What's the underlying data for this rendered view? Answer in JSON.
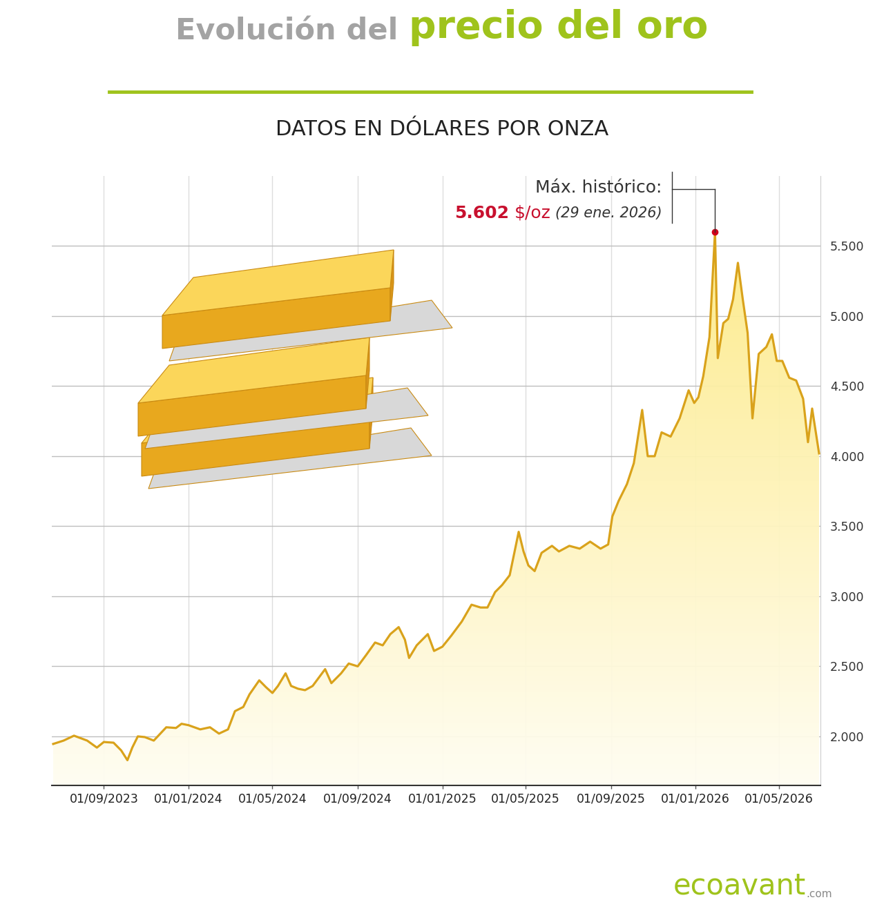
{
  "chart_data": {
    "type": "line",
    "title": [
      "Evolución del",
      "precio del oro"
    ],
    "subtitle": "DATOS EN DÓLARES POR ONZA",
    "color": "#d9a21b",
    "grid": true,
    "x": [
      "2023-06-20",
      "2023-07-05",
      "2023-07-20",
      "2023-08-08",
      "2023-08-22",
      "2023-09-01",
      "2023-09-15",
      "2023-09-26",
      "2023-10-05",
      "2023-10-12",
      "2023-10-20",
      "2023-10-30",
      "2023-11-12",
      "2023-11-30",
      "2023-12-14",
      "2023-12-22",
      "2024-01-01",
      "2024-01-18",
      "2024-02-01",
      "2024-02-14",
      "2024-02-27",
      "2024-03-08",
      "2024-03-20",
      "2024-03-29",
      "2024-04-12",
      "2024-04-22",
      "2024-05-01",
      "2024-05-09",
      "2024-05-20",
      "2024-05-28",
      "2024-06-07",
      "2024-06-17",
      "2024-06-28",
      "2024-07-16",
      "2024-07-25",
      "2024-08-08",
      "2024-08-19",
      "2024-09-01",
      "2024-09-13",
      "2024-09-26",
      "2024-10-07",
      "2024-10-18",
      "2024-10-30",
      "2024-11-08",
      "2024-11-14",
      "2024-11-25",
      "2024-12-11",
      "2024-12-20",
      "2025-01-01",
      "2025-01-14",
      "2025-01-29",
      "2025-02-12",
      "2025-02-25",
      "2025-03-07",
      "2025-03-18",
      "2025-03-28",
      "2025-04-08",
      "2025-04-21",
      "2025-04-28",
      "2025-05-05",
      "2025-05-14",
      "2025-05-24",
      "2025-06-08",
      "2025-06-18",
      "2025-07-03",
      "2025-07-18",
      "2025-08-02",
      "2025-08-17",
      "2025-08-28",
      "2025-09-03",
      "2025-09-12",
      "2025-09-24",
      "2025-10-04",
      "2025-10-16",
      "2025-10-24",
      "2025-11-03",
      "2025-11-13",
      "2025-11-26",
      "2025-12-09",
      "2025-12-22",
      "2025-12-30",
      "2026-01-05",
      "2026-01-12",
      "2026-01-21",
      "2026-01-29",
      "2026-02-02",
      "2026-02-10",
      "2026-02-17",
      "2026-02-24",
      "2026-03-03",
      "2026-03-10",
      "2026-03-17",
      "2026-03-24",
      "2026-04-02",
      "2026-04-13",
      "2026-04-21",
      "2026-04-28",
      "2026-05-06",
      "2026-05-16",
      "2026-05-26",
      "2026-06-05",
      "2026-06-12",
      "2026-06-18",
      "2026-06-28"
    ],
    "values": [
      1946,
      1970,
      2005,
      1970,
      1920,
      1960,
      1955,
      1900,
      1830,
      1920,
      2000,
      1995,
      1970,
      2065,
      2060,
      2090,
      2080,
      2050,
      2065,
      2020,
      2050,
      2180,
      2210,
      2300,
      2400,
      2350,
      2310,
      2360,
      2450,
      2360,
      2340,
      2330,
      2360,
      2480,
      2380,
      2450,
      2520,
      2500,
      2580,
      2670,
      2650,
      2730,
      2780,
      2690,
      2560,
      2650,
      2730,
      2610,
      2640,
      2720,
      2820,
      2940,
      2920,
      2920,
      3030,
      3080,
      3150,
      3460,
      3320,
      3220,
      3180,
      3310,
      3360,
      3320,
      3360,
      3340,
      3390,
      3340,
      3370,
      3570,
      3680,
      3800,
      3950,
      4330,
      4000,
      4000,
      4170,
      4140,
      4270,
      4470,
      4380,
      4420,
      4570,
      4850,
      5602,
      4700,
      4950,
      4980,
      5120,
      5380,
      5120,
      4880,
      4270,
      4730,
      4780,
      4870,
      4680,
      4680,
      4560,
      4540,
      4410,
      4100,
      4340,
      4020
    ],
    "xlim": [
      "2023-06-18",
      "2026-06-30"
    ],
    "xticks": [
      {
        "value": "2023-09-01",
        "label": "01/09/2023"
      },
      {
        "value": "2024-01-01",
        "label": "01/01/2024"
      },
      {
        "value": "2024-05-01",
        "label": "01/05/2024"
      },
      {
        "value": "2024-09-01",
        "label": "01/09/2024"
      },
      {
        "value": "2025-01-01",
        "label": "01/01/2025"
      },
      {
        "value": "2025-05-01",
        "label": "01/05/2025"
      },
      {
        "value": "2025-09-01",
        "label": "01/09/2025"
      },
      {
        "value": "2026-01-01",
        "label": "01/01/2026"
      },
      {
        "value": "2026-05-01",
        "label": "01/05/2026"
      }
    ],
    "ylim": [
      1650,
      6000
    ],
    "yticks": [
      {
        "value": 2000,
        "label": "2.000"
      },
      {
        "value": 2500,
        "label": "2.500"
      },
      {
        "value": 3000,
        "label": "3.000"
      },
      {
        "value": 3500,
        "label": "3.500"
      },
      {
        "value": 4000,
        "label": "4.000"
      },
      {
        "value": 4500,
        "label": "4.500"
      },
      {
        "value": 5000,
        "label": "5.000"
      },
      {
        "value": 5500,
        "label": "5.500"
      }
    ],
    "annotations": [
      {
        "x": "2026-01-29",
        "y": 5602,
        "text": "Máx. histórico:",
        "value_label": "5.602",
        "unit": "$/oz",
        "date_label": "(29 ene. 2026)"
      }
    ],
    "source": [
      "ecoavant",
      ".com"
    ]
  }
}
